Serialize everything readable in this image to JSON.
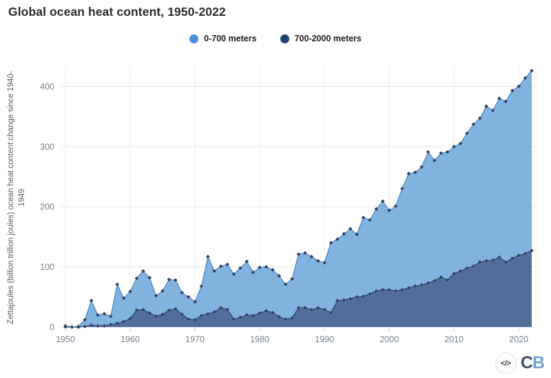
{
  "colors": {
    "series_0_700_fill": "#71a7da",
    "series_0_700_stroke": "#4e8ac8",
    "series_700_2000_fill": "#4e6b94",
    "series_700_2000_stroke": "#27456e",
    "marker": "#2b3f63",
    "legend_dot_0_700": "#4a90d8",
    "legend_dot_700_2000": "#1c4670",
    "grid": "#e6e6e6",
    "tick": "#ccd3da",
    "axis_text": "#75808a",
    "logo_c": "#3d5166",
    "logo_b": "#6fa3d8"
  },
  "footer": {
    "embed_icon_label": "</>",
    "logo_text_c": "C",
    "logo_text_b": "B"
  },
  "y_axis_label_line1": "Zettajoules (billion trillion joules) ocean heat content change since 1940-",
  "y_axis_label_line2": "1949",
  "chart_data": {
    "type": "area",
    "title": "Global ocean heat content, 1950-2022",
    "xlabel": "",
    "ylabel": "Zettajoules (billion trillion joules) ocean heat content change since 1940-1949",
    "legend_position": "top-center",
    "grid": true,
    "marker": "diamond",
    "x_ticks": [
      1950,
      1960,
      1970,
      1980,
      1990,
      2000,
      2010,
      2020
    ],
    "y_ticks": [
      0,
      100,
      200,
      300,
      400
    ],
    "xlim": [
      1950,
      2022
    ],
    "ylim": [
      0,
      440
    ],
    "years": [
      1950,
      1951,
      1952,
      1953,
      1954,
      1955,
      1956,
      1957,
      1958,
      1959,
      1960,
      1961,
      1962,
      1963,
      1964,
      1965,
      1966,
      1967,
      1968,
      1969,
      1970,
      1971,
      1972,
      1973,
      1974,
      1975,
      1976,
      1977,
      1978,
      1979,
      1980,
      1981,
      1982,
      1983,
      1984,
      1985,
      1986,
      1987,
      1988,
      1989,
      1990,
      1991,
      1992,
      1993,
      1994,
      1995,
      1996,
      1997,
      1998,
      1999,
      2000,
      2001,
      2002,
      2003,
      2004,
      2005,
      2006,
      2007,
      2008,
      2009,
      2010,
      2011,
      2012,
      2013,
      2014,
      2015,
      2016,
      2017,
      2018,
      2019,
      2020,
      2021,
      2022
    ],
    "series": [
      {
        "name": "0-700 meters",
        "values": [
          2,
          0,
          1,
          12,
          44,
          20,
          22,
          18,
          71,
          48,
          59,
          81,
          93,
          82,
          52,
          60,
          79,
          78,
          57,
          50,
          42,
          68,
          117,
          93,
          101,
          104,
          88,
          98,
          109,
          91,
          99,
          100,
          95,
          85,
          71,
          80,
          121,
          123,
          117,
          110,
          107,
          140,
          146,
          155,
          163,
          154,
          182,
          178,
          196,
          209,
          194,
          201,
          230,
          255,
          257,
          266,
          291,
          277,
          289,
          291,
          300,
          305,
          322,
          337,
          347,
          367,
          360,
          380,
          375,
          393,
          400,
          414,
          426
        ]
      },
      {
        "name": "700-2000 meters",
        "values": [
          0,
          0,
          0,
          1,
          3,
          2,
          2,
          4,
          6,
          9,
          14,
          28,
          29,
          23,
          18,
          21,
          28,
          30,
          21,
          13,
          12,
          19,
          22,
          25,
          32,
          29,
          13,
          16,
          20,
          19,
          23,
          27,
          24,
          17,
          13,
          15,
          32,
          32,
          29,
          32,
          29,
          24,
          44,
          45,
          47,
          50,
          51,
          55,
          60,
          62,
          62,
          60,
          62,
          65,
          68,
          70,
          73,
          77,
          83,
          78,
          89,
          93,
          98,
          101,
          108,
          110,
          111,
          116,
          108,
          114,
          119,
          122,
          127
        ]
      }
    ]
  }
}
